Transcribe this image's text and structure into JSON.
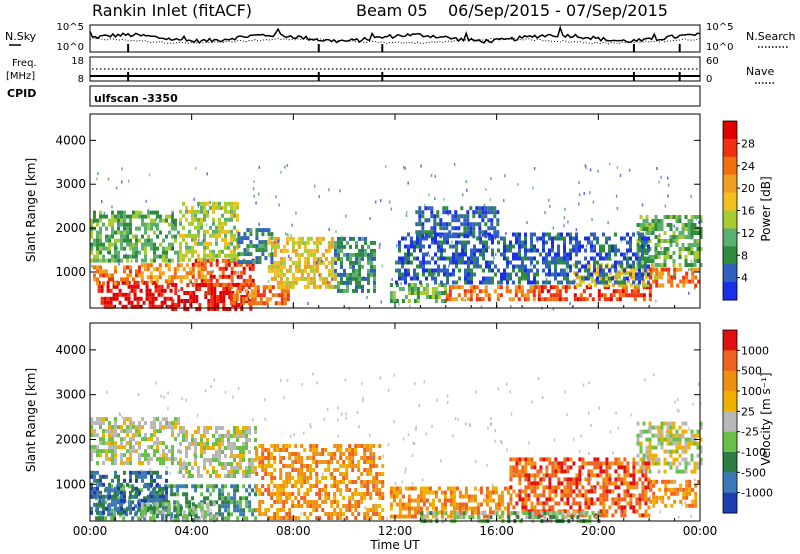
{
  "header": {
    "station": "Rankin Inlet (fitACF)",
    "beam": "Beam 05",
    "date_range": "06/Sep/2015 - 07/Sep/2015"
  },
  "strip": {
    "nsky_label": "N.Sky",
    "nsearch_label": "N.Search",
    "noise_ticks": [
      "10^5",
      "10^0"
    ],
    "freq_label": "Freq.",
    "freq_unit": "[MHz]",
    "freq_ticks": [
      "18",
      "8"
    ],
    "nave_label": "Nave",
    "nave_ticks": [
      "60",
      "0"
    ],
    "cpid_label": "CPID",
    "cpid_value": "ulfscan -3350"
  },
  "colors": {
    "power": [
      "#1a2fe8",
      "#3060c0",
      "#2e8c3c",
      "#5bb070",
      "#a8cc30",
      "#f0c020",
      "#f0a020",
      "#f07010",
      "#f03010",
      "#e00000"
    ],
    "velocity": [
      "#1f3fb0",
      "#3a78b8",
      "#2d7d44",
      "#68c048",
      "#b8b8b8",
      "#f0b000",
      "#f09010",
      "#f06020",
      "#e01010"
    ],
    "ground_scatter": "#c0c0c0"
  },
  "chart_data": [
    {
      "type": "heatmap",
      "name": "power",
      "ylabel": "Slant Range [km]",
      "xlabel": "Time UT",
      "x_ticks": [
        "00:00",
        "04:00",
        "08:00",
        "12:00",
        "16:00",
        "20:00",
        "00:00"
      ],
      "x_range_hours": [
        0,
        24
      ],
      "ylim": [
        180,
        4600
      ],
      "y_ticks": [
        1000,
        2000,
        3000,
        4000
      ],
      "colorbar": {
        "label": "Power [dB]",
        "range": [
          0,
          32
        ],
        "ticks": [
          4,
          8,
          12,
          16,
          20,
          24,
          28
        ]
      },
      "regions": [
        {
          "t0": 0.3,
          "t1": 3.2,
          "r0": 200,
          "r1": 800,
          "level": 9
        },
        {
          "t0": 3.2,
          "t1": 6.5,
          "r0": 200,
          "r1": 750,
          "level": 9
        },
        {
          "t0": 4.0,
          "t1": 6.4,
          "r0": 750,
          "r1": 1300,
          "level": 8
        },
        {
          "t0": 5.5,
          "t1": 7.8,
          "r0": 300,
          "r1": 700,
          "level": 7
        },
        {
          "t0": 0.0,
          "t1": 2.0,
          "r0": 700,
          "r1": 1150,
          "level": 7
        },
        {
          "t0": 2.0,
          "t1": 4.5,
          "r0": 800,
          "r1": 1200,
          "level": 6
        },
        {
          "t0": 7.0,
          "t1": 9.6,
          "r0": 700,
          "r1": 1800,
          "level": 5
        },
        {
          "t0": 9.6,
          "t1": 11.2,
          "r0": 600,
          "r1": 1800,
          "level": 2
        },
        {
          "t0": 0.0,
          "t1": 3.5,
          "r0": 1300,
          "r1": 2400,
          "level": 3
        },
        {
          "t0": 3.5,
          "t1": 5.8,
          "r0": 1300,
          "r1": 2600,
          "level": 4
        },
        {
          "t0": 5.8,
          "t1": 7.2,
          "r0": 1200,
          "r1": 2000,
          "level": 2
        },
        {
          "t0": 11.8,
          "t1": 14.0,
          "r0": 350,
          "r1": 750,
          "level": 3
        },
        {
          "t0": 14.0,
          "t1": 17.5,
          "r0": 350,
          "r1": 700,
          "level": 7
        },
        {
          "t0": 17.5,
          "t1": 22.0,
          "r0": 400,
          "r1": 700,
          "level": 8
        },
        {
          "t0": 19.0,
          "t1": 22.5,
          "r0": 700,
          "r1": 1200,
          "level": 5
        },
        {
          "t0": 22.0,
          "t1": 24.0,
          "r0": 650,
          "r1": 1100,
          "level": 7
        },
        {
          "t0": 21.5,
          "t1": 24.0,
          "r0": 1200,
          "r1": 2300,
          "level": 3
        },
        {
          "t0": 12.0,
          "t1": 22.0,
          "r0": 800,
          "r1": 1900,
          "level": 1
        },
        {
          "t0": 12.8,
          "t1": 16.0,
          "r0": 1800,
          "r1": 2500,
          "level": 1
        }
      ]
    },
    {
      "type": "heatmap",
      "name": "velocity",
      "ylabel": "Slant Range [km]",
      "xlabel": "Time UT",
      "x_ticks": [
        "00:00",
        "04:00",
        "08:00",
        "12:00",
        "16:00",
        "20:00",
        "00:00"
      ],
      "x_range_hours": [
        0,
        24
      ],
      "ylim": [
        180,
        4600
      ],
      "y_ticks": [
        1000,
        2000,
        3000,
        4000
      ],
      "colorbar": {
        "label": "Velocity [m s⁻¹]",
        "ticks": [
          "1000",
          "500",
          "100",
          "25",
          "-25",
          "-100",
          "-500",
          "-1000"
        ]
      },
      "regions": [
        {
          "t0": 0.2,
          "t1": 6.5,
          "r0": 200,
          "r1": 1000,
          "level": 2
        },
        {
          "t0": 0.0,
          "t1": 3.0,
          "r0": 400,
          "r1": 1300,
          "level": 1
        },
        {
          "t0": 2.0,
          "t1": 5.0,
          "r0": 200,
          "r1": 600,
          "level": 3
        },
        {
          "t0": 0.0,
          "t1": 3.5,
          "r0": 1500,
          "r1": 2500,
          "level": 4
        },
        {
          "t0": 3.5,
          "t1": 6.5,
          "r0": 1200,
          "r1": 2300,
          "level": 4
        },
        {
          "t0": 6.5,
          "t1": 11.5,
          "r0": 250,
          "r1": 1900,
          "level": 6
        },
        {
          "t0": 11.8,
          "t1": 16.5,
          "r0": 300,
          "r1": 950,
          "level": 6
        },
        {
          "t0": 16.5,
          "t1": 22.0,
          "r0": 300,
          "r1": 1600,
          "level": 7
        },
        {
          "t0": 22.0,
          "t1": 24.0,
          "r0": 500,
          "r1": 1100,
          "level": 6
        },
        {
          "t0": 21.5,
          "t1": 24.0,
          "r0": 1300,
          "r1": 2400,
          "level": 4
        },
        {
          "t0": 13.0,
          "t1": 20.0,
          "r0": 200,
          "r1": 400,
          "level": 3
        }
      ]
    }
  ]
}
